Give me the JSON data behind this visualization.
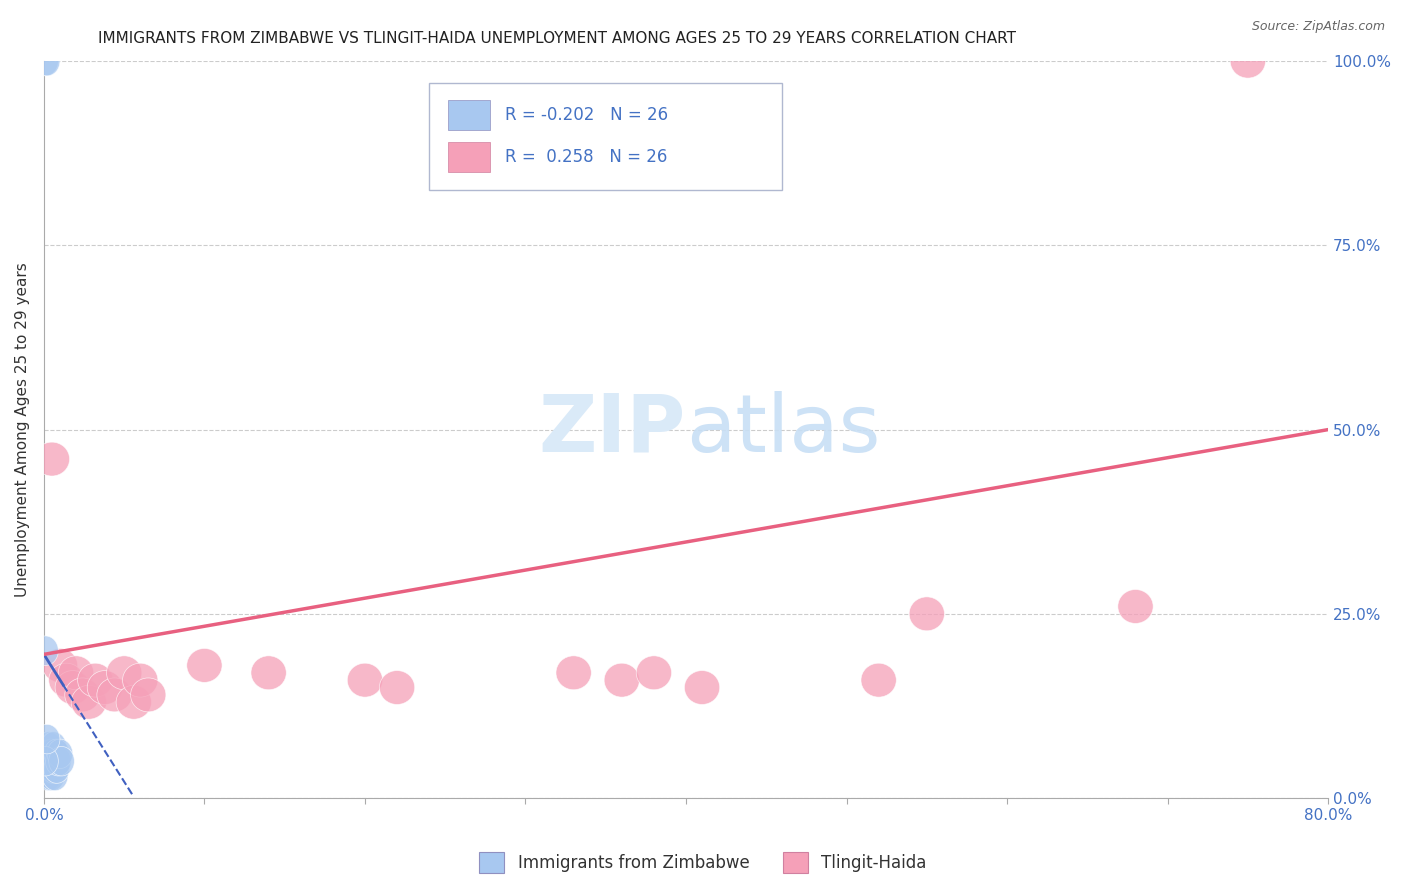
{
  "title": "IMMIGRANTS FROM ZIMBABWE VS TLINGIT-HAIDA UNEMPLOYMENT AMONG AGES 25 TO 29 YEARS CORRELATION CHART",
  "source": "Source: ZipAtlas.com",
  "ylabel": "Unemployment Among Ages 25 to 29 years",
  "xlim": [
    0.0,
    0.8
  ],
  "ylim": [
    0.0,
    1.0
  ],
  "xticks": [
    0.0,
    0.1,
    0.2,
    0.3,
    0.4,
    0.5,
    0.6,
    0.7,
    0.8
  ],
  "xticklabels": [
    "0.0%",
    "",
    "",
    "",
    "",
    "",
    "",
    "",
    "80.0%"
  ],
  "yticks": [
    0.0,
    0.25,
    0.5,
    0.75,
    1.0
  ],
  "yticklabels": [
    "0.0%",
    "25.0%",
    "50.0%",
    "75.0%",
    "100.0%"
  ],
  "R_zimbabwe": -0.202,
  "R_tlingit": 0.258,
  "N_zimbabwe": 26,
  "N_tlingit": 26,
  "zimbabwe_color": "#a8c8f0",
  "tlingit_color": "#f5a0b8",
  "zimbabwe_line_color": "#4060c0",
  "tlingit_line_color": "#e86080",
  "background_color": "#ffffff",
  "grid_color": "#cccccc",
  "watermark_color": "#daeaf8",
  "title_fontsize": 11,
  "axis_label_fontsize": 11,
  "tick_fontsize": 11,
  "zim_trendline_x": [
    0.0,
    0.055
  ],
  "zim_trendline_y": [
    0.195,
    0.005
  ],
  "tlin_trendline_x": [
    0.0,
    0.8
  ],
  "tlin_trendline_y": [
    0.195,
    0.5
  ],
  "zimbabwe_x": [
    0.001,
    0.001,
    0.002,
    0.002,
    0.003,
    0.003,
    0.003,
    0.003,
    0.004,
    0.004,
    0.004,
    0.005,
    0.005,
    0.005,
    0.006,
    0.006,
    0.006,
    0.007,
    0.007,
    0.008,
    0.008,
    0.009,
    0.01,
    0.011,
    0.001,
    0.002
  ],
  "zimbabwe_y": [
    0.2,
    1.0,
    1.0,
    0.06,
    0.07,
    0.05,
    0.04,
    0.03,
    0.06,
    0.04,
    0.05,
    0.06,
    0.04,
    0.03,
    0.05,
    0.07,
    0.04,
    0.05,
    0.03,
    0.06,
    0.04,
    0.05,
    0.06,
    0.05,
    0.05,
    0.08
  ],
  "tlingit_x": [
    0.005,
    0.01,
    0.014,
    0.018,
    0.02,
    0.024,
    0.028,
    0.032,
    0.038,
    0.044,
    0.05,
    0.056,
    0.06,
    0.065,
    0.1,
    0.14,
    0.2,
    0.22,
    0.33,
    0.36,
    0.38,
    0.41,
    0.52,
    0.55,
    0.68,
    0.75
  ],
  "tlingit_y": [
    0.46,
    0.18,
    0.16,
    0.15,
    0.17,
    0.14,
    0.13,
    0.16,
    0.15,
    0.14,
    0.17,
    0.13,
    0.16,
    0.14,
    0.18,
    0.17,
    0.16,
    0.15,
    0.17,
    0.16,
    0.17,
    0.15,
    0.16,
    0.25,
    0.26,
    1.0
  ]
}
